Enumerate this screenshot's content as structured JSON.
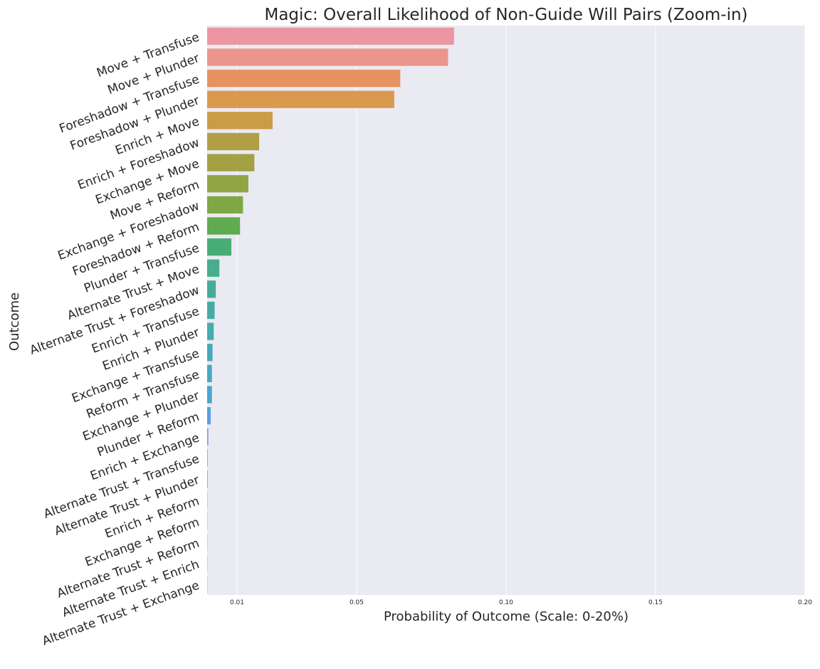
{
  "chart_data": {
    "type": "bar",
    "orientation": "horizontal",
    "title": "Magic: Overall Likelihood of Non-Guide Will Pairs (Zoom-in)",
    "xlabel": "Probability of Outcome (Scale: 0-20%)",
    "ylabel": "Outcome",
    "xlim": [
      0,
      0.2
    ],
    "xticks": [
      {
        "value": 0.01,
        "label": "0.01"
      },
      {
        "value": 0.05,
        "label": "0.05"
      },
      {
        "value": 0.1,
        "label": "0.10"
      },
      {
        "value": 0.15,
        "label": "0.15"
      },
      {
        "value": 0.2,
        "label": "0.20"
      }
    ],
    "grid": true,
    "categories": [
      "Move + Transfuse",
      "Move + Plunder",
      "Foreshadow + Transfuse",
      "Foreshadow + Plunder",
      "Enrich + Move",
      "Enrich + Foreshadow",
      "Exchange + Move",
      "Move + Reform",
      "Exchange + Foreshadow",
      "Foreshadow + Reform",
      "Plunder + Transfuse",
      "Alternate Trust + Move",
      "Alternate Trust + Foreshadow",
      "Enrich + Transfuse",
      "Enrich + Plunder",
      "Exchange + Transfuse",
      "Reform + Transfuse",
      "Exchange + Plunder",
      "Plunder + Reform",
      "Enrich + Exchange",
      "Alternate Trust + Transfuse",
      "Alternate Trust + Plunder",
      "Enrich + Reform",
      "Exchange + Reform",
      "Alternate Trust + Reform",
      "Alternate Trust + Enrich",
      "Alternate Trust + Exchange"
    ],
    "values": [
      0.0826,
      0.0806,
      0.0646,
      0.0626,
      0.0219,
      0.0174,
      0.0158,
      0.0138,
      0.012,
      0.011,
      0.0081,
      0.0041,
      0.0029,
      0.0025,
      0.0022,
      0.0018,
      0.0016,
      0.0016,
      0.0012,
      0.0004,
      0.0002,
      0.0002,
      0.0001,
      0.0001,
      0.0001,
      0.0001,
      0.0001
    ],
    "colors": [
      "#ed96a3",
      "#eb958b",
      "#e6935f",
      "#d99a4e",
      "#c99c46",
      "#b19f45",
      "#a3a144",
      "#93a445",
      "#7ea746",
      "#5fab4f",
      "#48ad75",
      "#47ad8c",
      "#46ac98",
      "#47aba3",
      "#48abad",
      "#49a9b6",
      "#4aa7c2",
      "#4ca5cf",
      "#5aa0e0",
      "#8c94e8",
      "#a78be8",
      "#bd80e6",
      "#d17ae5",
      "#e07ee0",
      "#e883ce",
      "#ec88bd",
      "#ee8ead"
    ],
    "background": "#eaeaf2"
  }
}
